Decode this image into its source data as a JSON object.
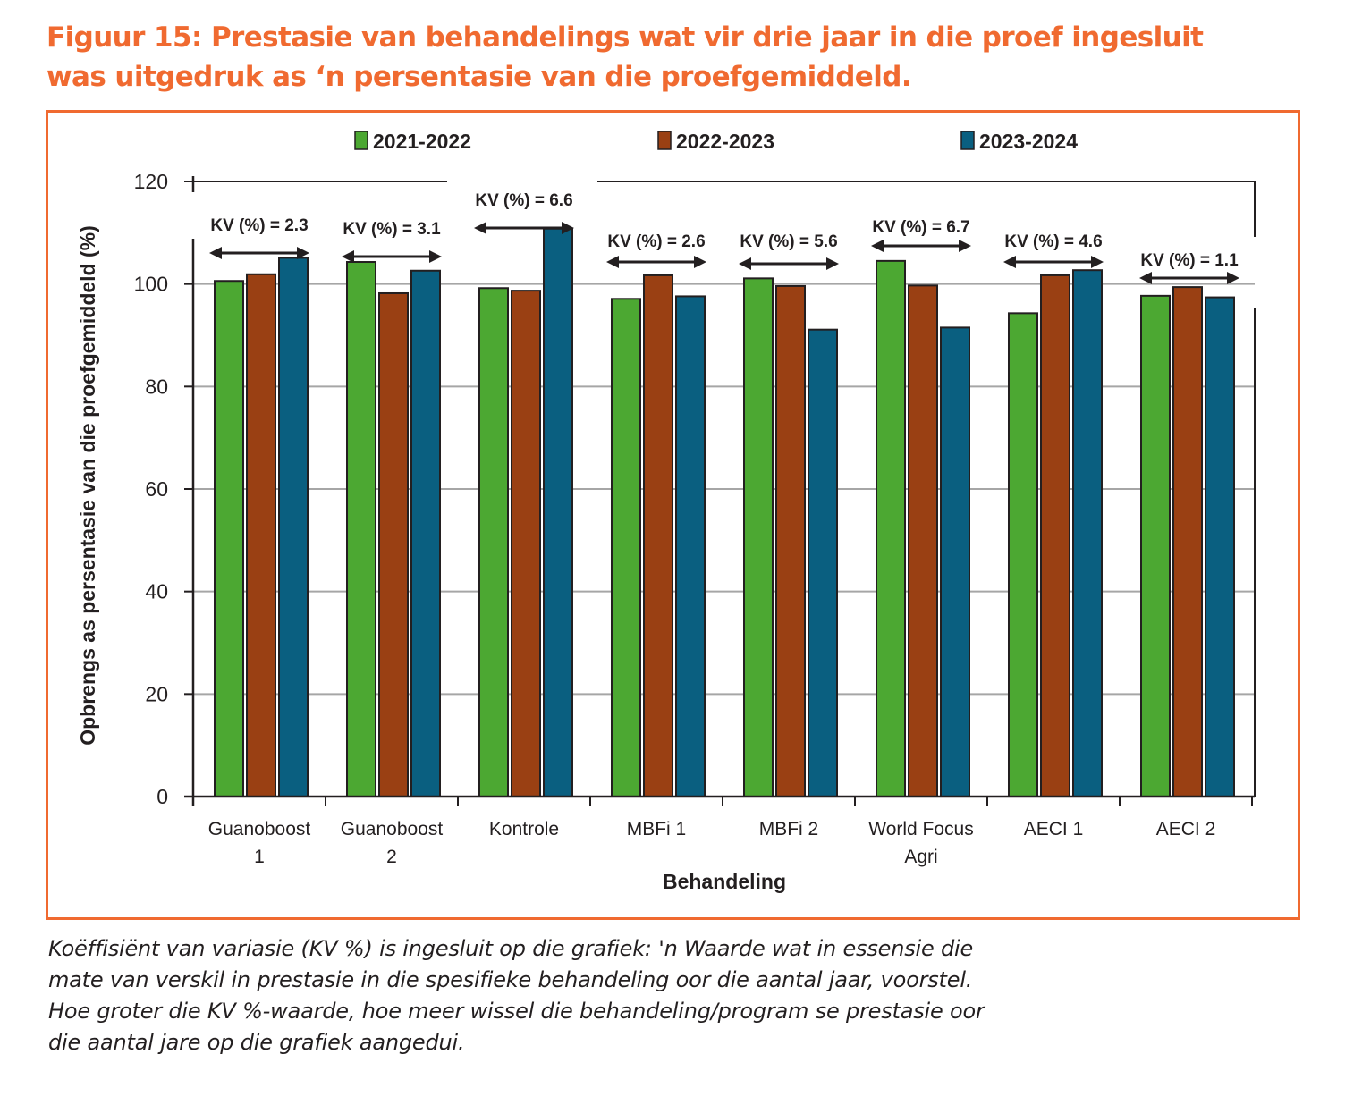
{
  "figure": {
    "title_lines": [
      "Figuur 15: Prestasie van behandelings wat vir drie jaar in die proef ingesluit",
      "was uitgedruk as ‘n persentasie van die proefgemiddeld."
    ],
    "caption_lines": [
      "Koëffisiënt van variasie (KV %) is ingesluit op die grafiek: 'n Waarde wat in essensie die",
      "mate van verskil in prestasie in die spesifieke behandeling oor die aantal jaar, voorstel.",
      "Hoe groter die KV %-waarde, hoe meer wissel die behandeling/program se prestasie oor",
      "die aantal jare op die grafiek aangedui."
    ],
    "accent_color": "#F06A30"
  },
  "chart_data": {
    "type": "bar",
    "title": "",
    "xlabel": "Behandeling",
    "ylabel": "Opbrengs as persentasie van die proefgemiddeld (%)",
    "ylim": [
      0,
      120
    ],
    "yticks": [
      0,
      20,
      40,
      60,
      80,
      100,
      120
    ],
    "grid": "horizontal",
    "legend_position": "top",
    "categories": [
      [
        "Guanoboost",
        "1"
      ],
      [
        "Guanoboost",
        "2"
      ],
      [
        "Kontrole"
      ],
      [
        "MBFi 1"
      ],
      [
        "MBFi 2"
      ],
      [
        "World Focus",
        "Agri"
      ],
      [
        "AECI 1"
      ],
      [
        "AECI 2"
      ]
    ],
    "series": [
      {
        "name": "2021-2022",
        "color": "#4CA832",
        "values": [
          100.6,
          104.3,
          99.2,
          97.1,
          101.1,
          104.5,
          94.3,
          97.7
        ]
      },
      {
        "name": "2022-2023",
        "color": "#9A4013",
        "values": [
          101.9,
          98.2,
          98.7,
          101.7,
          99.6,
          99.7,
          101.7,
          99.4
        ]
      },
      {
        "name": "2023-2024",
        "color": "#0A5F80",
        "values": [
          105.1,
          102.6,
          110.8,
          97.6,
          91.1,
          91.5,
          102.7,
          97.4
        ]
      }
    ],
    "annotations": [
      {
        "label": "KV (%) = 2.3",
        "value": 2.3
      },
      {
        "label": "KV (%) = 3.1",
        "value": 3.1
      },
      {
        "label": "KV (%) = 6.6",
        "value": 6.6
      },
      {
        "label": "KV (%) = 2.6",
        "value": 2.6
      },
      {
        "label": "KV (%) = 5.6",
        "value": 5.6
      },
      {
        "label": "KV (%) = 6.7",
        "value": 6.7
      },
      {
        "label": "KV (%) = 4.6",
        "value": 4.6
      },
      {
        "label": "KV (%) = 1.1",
        "value": 1.1
      }
    ]
  }
}
